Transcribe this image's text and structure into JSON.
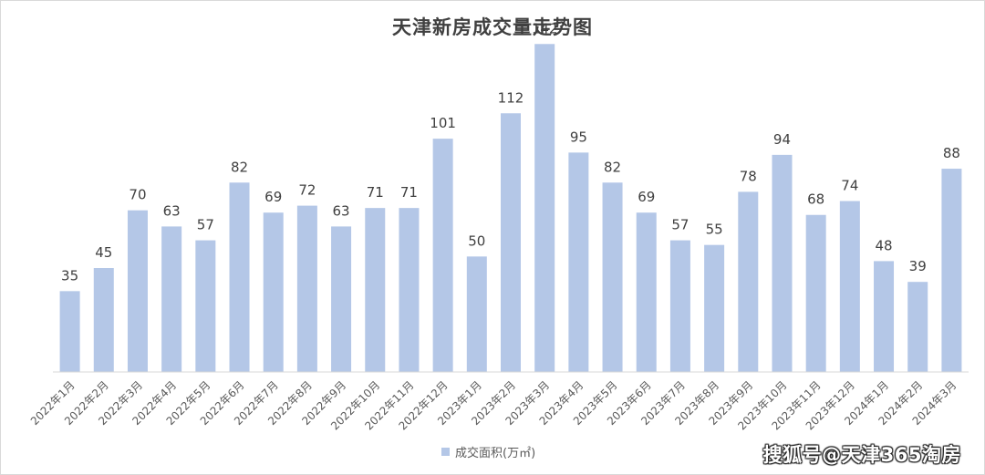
{
  "chart_data": {
    "type": "bar",
    "title": "天津新房成交量走势图",
    "categories": [
      "2022年1月",
      "2022年2月",
      "2022年3月",
      "2022年4月",
      "2022年5月",
      "2022年6月",
      "2022年7月",
      "2022年8月",
      "2022年9月",
      "2022年10月",
      "2022年11月",
      "2022年12月",
      "2023年1月",
      "2023年2月",
      "2023年3月",
      "2023年4月",
      "2023年5月",
      "2023年6月",
      "2023年7月",
      "2023年8月",
      "2023年9月",
      "2023年10月",
      "2023年11月",
      "2023年12月",
      "2024年1月",
      "2024年2月",
      "2024年3月"
    ],
    "series": [
      {
        "name": "成交面积(万㎡)",
        "values": [
          35,
          45,
          70,
          63,
          57,
          82,
          69,
          72,
          63,
          71,
          71,
          101,
          50,
          112,
          142,
          95,
          82,
          69,
          57,
          55,
          78,
          94,
          68,
          74,
          48,
          39,
          88
        ]
      }
    ],
    "ylim": [
      0,
      150
    ],
    "grid": false,
    "legend_position": "bottom",
    "bar_color": "#b4c7e7"
  },
  "watermark": "搜狐号@天津365淘房"
}
